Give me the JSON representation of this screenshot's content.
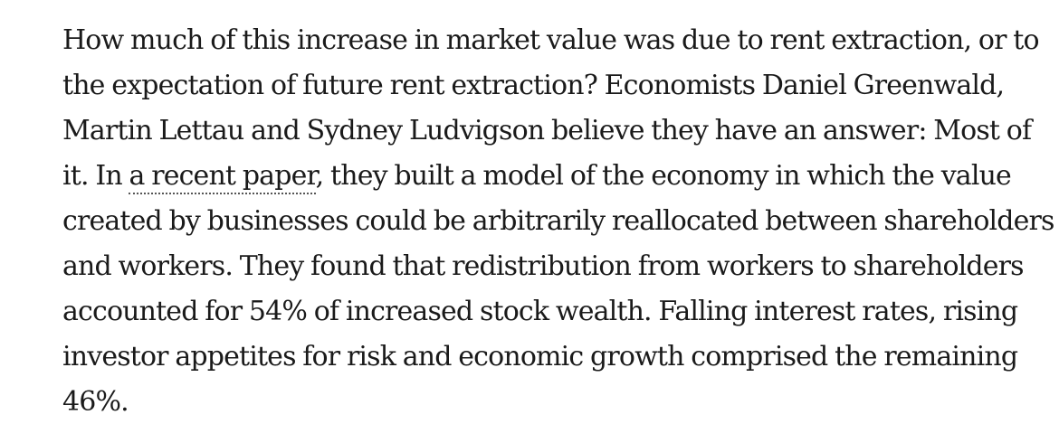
{
  "article": {
    "paragraph": {
      "lines": [
        "How much of this increase in market value was due to rent extraction, or to",
        "the expectation of future rent extraction? Economists Daniel Greenwald,",
        "Martin Lettau and Sydney Ludvigson believe they have an answer: Most of",
        {
          "before": "it. In ",
          "link": "a recent paper",
          "after": ", they built a model of the economy in which the value"
        },
        "created by businesses could be arbitrarily reallocated between shareholders",
        "and workers. They found that redistribution from workers to shareholders",
        "accounted for 54% of increased stock wealth. Falling interest rates, rising",
        "investor appetites for risk and economic growth comprised the remaining",
        "46%."
      ]
    }
  }
}
